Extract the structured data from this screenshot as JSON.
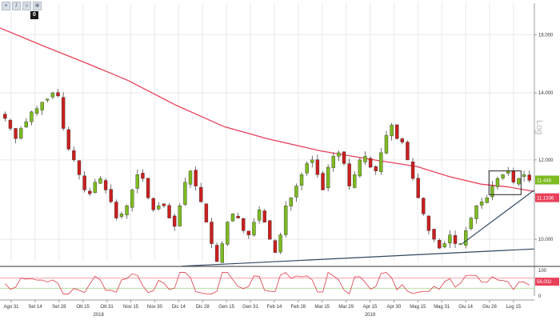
{
  "toolbar": {
    "buttons": [
      {
        "icon": "crosshair-icon",
        "glyph": "+"
      },
      {
        "icon": "draw-line-icon",
        "glyph": "/"
      },
      {
        "icon": "magnet-icon",
        "glyph": "∩"
      },
      {
        "icon": "zoom-icon",
        "glyph": "⊕"
      }
    ],
    "badge": "0"
  },
  "scale_label": "Log",
  "colors": {
    "up_candle": "#7dbb1f",
    "down_candle": "#cc1e1e",
    "moving_average": "#e8415a",
    "trendline": "#2e4760",
    "last_price": "#7dbb1f",
    "ma_value": "#e8415a",
    "grid": "#e9e9e9"
  },
  "chart_data": {
    "type": "candlestick",
    "y_axis": {
      "scale": "log",
      "ticks": [
        "16.000",
        "14.000",
        "12.000",
        "10.000"
      ],
      "tick_values": [
        16,
        14,
        12,
        10
      ],
      "range": [
        9.5,
        17.2
      ]
    },
    "x_axis": {
      "ticks": [
        "Ago 31",
        "Set 14",
        "Set 28",
        "Ott 15",
        "Ott 31",
        "Nov 15",
        "Nov 30",
        "Dic 14",
        "Dic 28",
        "Gen 15",
        "Gen 31",
        "Feb 14",
        "Feb 28",
        "Mar 15",
        "Mar 29",
        "Apr 15",
        "Apr 30",
        "Mag 15",
        "Mag 31",
        "Giu 14",
        "Giu 28",
        "Lug 15"
      ],
      "years": [
        "2018",
        "2019"
      ]
    },
    "last_price": "11.448",
    "moving_average_value": "11.1336",
    "moving_average_path": [
      [
        0,
        16.25
      ],
      [
        8,
        15.6
      ],
      [
        16,
        15.0
      ],
      [
        24,
        14.4
      ],
      [
        33,
        13.6
      ],
      [
        42,
        12.95
      ],
      [
        50,
        12.6
      ],
      [
        60,
        12.25
      ],
      [
        70,
        12.0
      ],
      [
        78,
        11.82
      ],
      [
        84,
        11.55
      ],
      [
        90,
        11.35
      ],
      [
        95,
        11.28
      ],
      [
        100,
        11.16
      ]
    ],
    "trendlines": [
      {
        "from": [
          34,
          9.4
        ],
        "to": [
          100,
          9.78
        ]
      },
      {
        "from": [
          86.5,
          9.9
        ],
        "to": [
          100,
          11.2
        ]
      }
    ],
    "rectangle": {
      "x_from": 91.5,
      "x_to": 97.5,
      "y_from": 11.08,
      "y_to": 11.7
    },
    "candles_close": [
      13.2,
      12.9,
      12.6,
      12.9,
      13.1,
      13.4,
      13.5,
      13.7,
      13.8,
      14.0,
      13.9,
      12.9,
      12.3,
      12.0,
      11.6,
      11.2,
      11.1,
      11.4,
      11.5,
      11.2,
      10.9,
      10.5,
      10.6,
      10.8,
      11.2,
      11.6,
      11.5,
      11.0,
      10.7,
      10.8,
      10.8,
      10.5,
      10.3,
      10.8,
      11.4,
      11.7,
      11.3,
      10.9,
      10.4,
      9.9,
      9.5,
      9.9,
      10.4,
      10.6,
      10.5,
      10.2,
      10.1,
      10.4,
      10.7,
      10.4,
      10.0,
      9.7,
      10.1,
      10.8,
      11.0,
      11.3,
      11.6,
      11.9,
      12.0,
      11.6,
      11.2,
      11.8,
      12.1,
      12.2,
      11.9,
      11.3,
      11.6,
      12.0,
      12.1,
      11.8,
      11.7,
      12.2,
      12.7,
      13.0,
      12.6,
      12.5,
      12.0,
      11.5,
      11.0,
      10.6,
      10.2,
      10.0,
      9.8,
      9.9,
      10.1,
      9.9,
      9.9,
      10.2,
      10.5,
      10.8,
      10.9,
      11.0,
      11.3,
      11.5,
      11.6,
      11.7,
      11.4,
      11.5,
      11.6,
      11.45
    ]
  },
  "rsi": {
    "ticks": [
      "100",
      "0"
    ],
    "tick_values": [
      100,
      0
    ],
    "upper_level": 70,
    "lower_level": 30,
    "value": "56.002",
    "colors": {
      "line": "#dd3b4a",
      "upper": "#f3a0a8",
      "lower": "#b9dfa0",
      "value_badge": "#e8415a"
    }
  }
}
